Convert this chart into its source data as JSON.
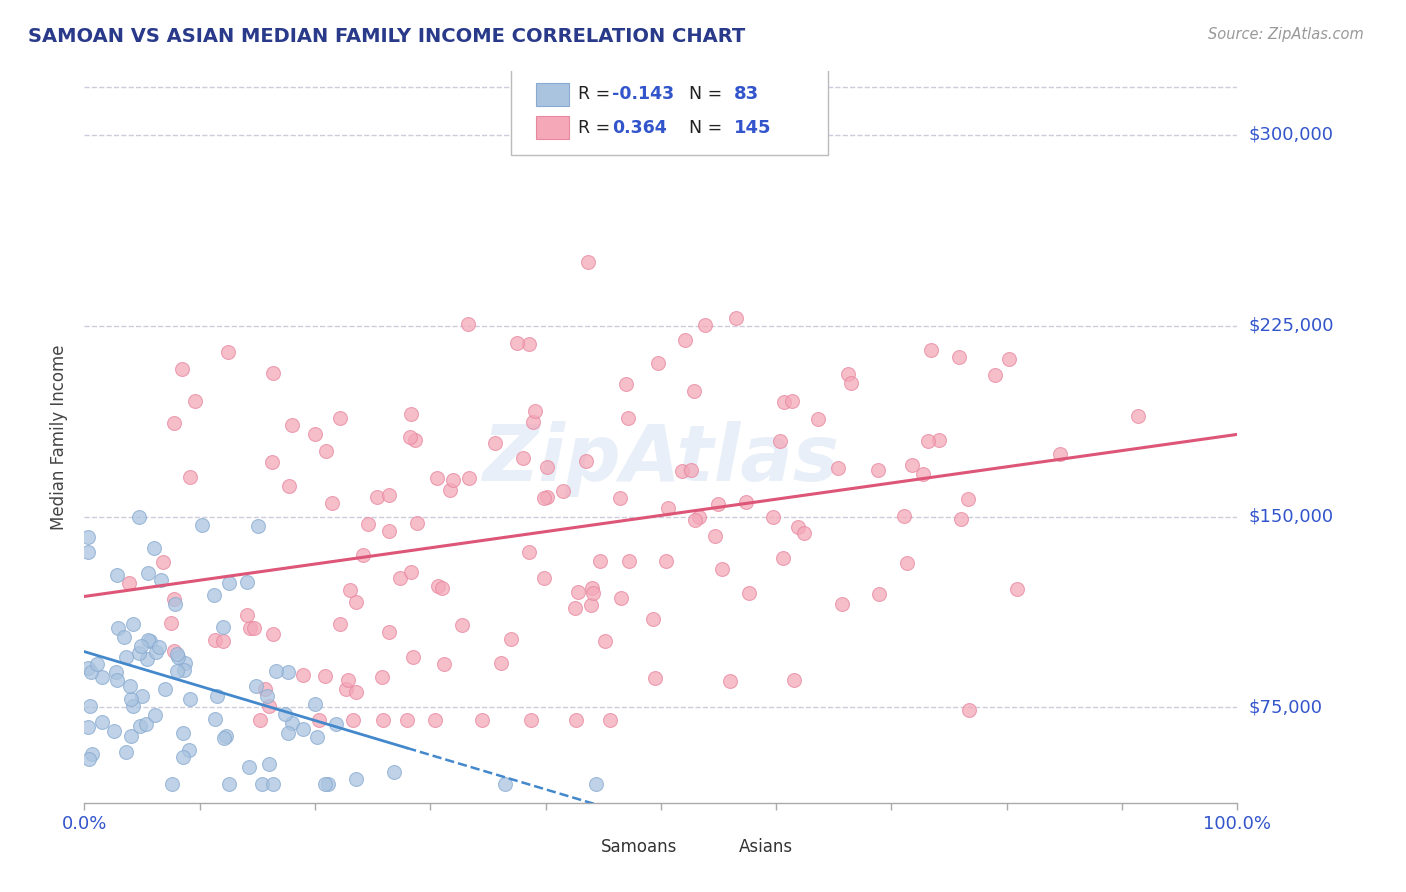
{
  "title": "SAMOAN VS ASIAN MEDIAN FAMILY INCOME CORRELATION CHART",
  "source": "Source: ZipAtlas.com",
  "ylabel": "Median Family Income",
  "xlim": [
    0.0,
    1.0
  ],
  "ylim": [
    37500,
    325000
  ],
  "yticks": [
    75000,
    150000,
    225000,
    300000
  ],
  "ytick_labels": [
    "$75,000",
    "$150,000",
    "$225,000",
    "$300,000"
  ],
  "top_gridline": 318750,
  "samoan_color": "#aac4e0",
  "asian_color": "#f4a8b8",
  "samoan_edge": "#88aad0",
  "asian_edge": "#e888a0",
  "samoan_R": -0.143,
  "samoan_N": 83,
  "asian_R": 0.364,
  "asian_N": 145,
  "trend_color_samoan": "#4488cc",
  "trend_color_asian": "#dd5577",
  "label_color": "#3355cc",
  "watermark_color": "#ccddf0",
  "watermark_alpha": 0.45,
  "background_color": "#ffffff",
  "grid_color": "#ccccdd",
  "legend_label_samoan": "Samoans",
  "legend_label_asian": "Asians",
  "title_color": "#2a3a8a",
  "source_color": "#999999"
}
